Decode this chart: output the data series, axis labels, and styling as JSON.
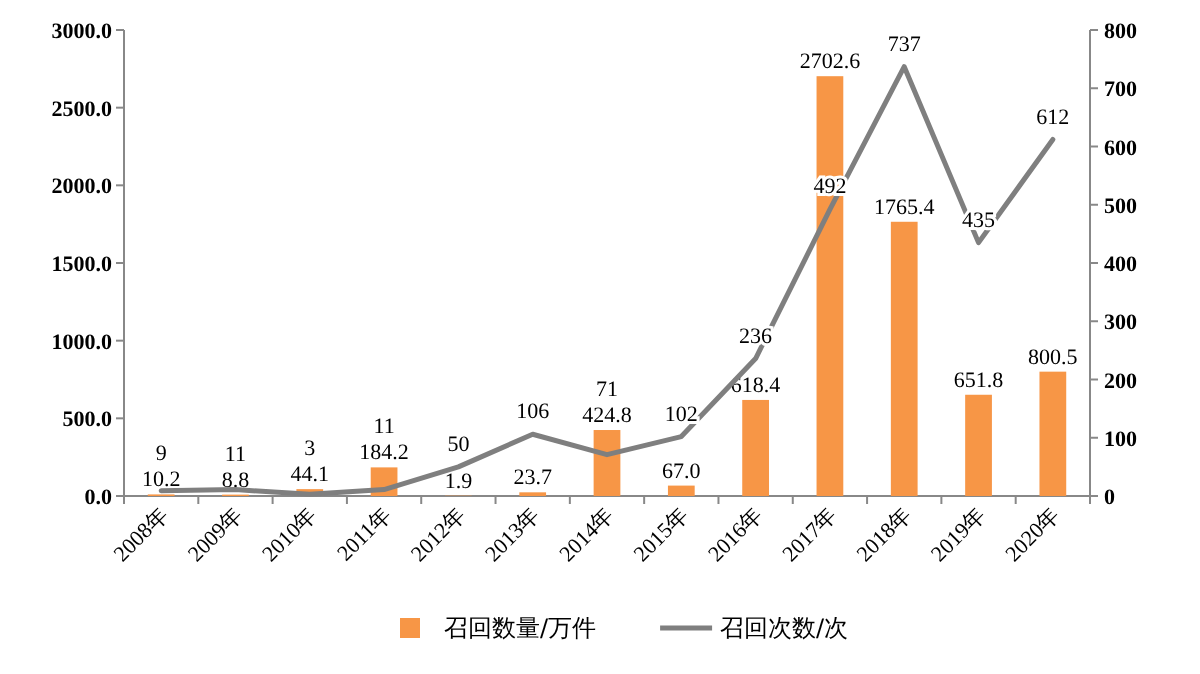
{
  "chart_data": {
    "type": "bar",
    "categories": [
      "2008年",
      "2009年",
      "2010年",
      "2011年",
      "2012年",
      "2013年",
      "2014年",
      "2015年",
      "2016年",
      "2017年",
      "2018年",
      "2019年",
      "2020年"
    ],
    "series": [
      {
        "name": "召回数量/万件",
        "color": "#f79646",
        "values": [
          10.2,
          8.8,
          44.1,
          184.2,
          1.9,
          23.7,
          424.8,
          67.0,
          618.4,
          2702.6,
          1765.4,
          651.8,
          800.5
        ],
        "value_labels": [
          "10.2",
          "8.8",
          "44.1",
          "184.2",
          "1.9",
          "23.7",
          "424.8",
          "67.0",
          "618.4",
          "2702.6",
          "1765.4",
          "651.8",
          "800.5"
        ]
      },
      {
        "name": "召回次数/次",
        "type": "line",
        "axis": "y2",
        "color": "#7f7f7f",
        "values": [
          9,
          11,
          3,
          11,
          50,
          106,
          71,
          102,
          236,
          492,
          737,
          435,
          612
        ],
        "value_labels": [
          "9",
          "11",
          "3",
          "11",
          "50",
          "106",
          "71",
          "102",
          "236",
          "492",
          "737",
          "435",
          "612"
        ]
      }
    ],
    "ylim": [
      0,
      3000
    ],
    "yticks": [
      {
        "value": 0,
        "label": "0.0"
      },
      {
        "value": 500,
        "label": "500.0"
      },
      {
        "value": 1000,
        "label": "1000.0"
      },
      {
        "value": 1500,
        "label": "1500.0"
      },
      {
        "value": 2000,
        "label": "2000.0"
      },
      {
        "value": 2500,
        "label": "2500.0"
      },
      {
        "value": 3000,
        "label": "3000.0"
      }
    ],
    "y2lim": [
      0,
      800
    ],
    "y2ticks": [
      0,
      100,
      200,
      300,
      400,
      500,
      600,
      700,
      800
    ],
    "grid": false,
    "legend": "bottom",
    "marker": "none",
    "line_style": "solid"
  }
}
